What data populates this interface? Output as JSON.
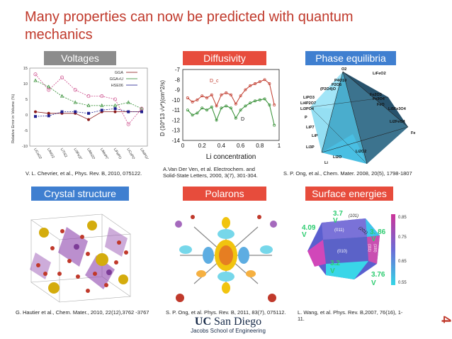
{
  "slide": {
    "title": "Many properties can now be predicted with quantum mechanics",
    "page_number": "4"
  },
  "labels": {
    "voltages": "Voltages",
    "diffusivity": "Diffusivity",
    "phase_equilibria": "Phase equilibria",
    "crystal_structure": "Crystal structure",
    "polarons": "Polarons",
    "surface_energies": "Surface energies"
  },
  "citations": {
    "voltages": "V. L. Chevrier, et al., Phys. Rev. B, 2010, 075122.",
    "diffusivity": "A.Van Der Ven, et al. Electrochem. and Solid-State Letters, 2000, 3(7), 301-304.",
    "phase_equilibria": "S. P. Ong, et al., Chem. Mater. 2008, 20(5), 1798-1807",
    "crystal_structure": "G. Hautier et al., Chem. Mater., 2010, 22(12),3762 -3767",
    "polarons": "S. P. Ong, et al. Phys. Rev. B, 2011, 83(7), 075112.",
    "surface_energies": "L. Wang, et al. Phys. Rev. B,2007, 76(16), 1-11."
  },
  "logo": {
    "uc": "UC",
    "san_diego": "San Diego",
    "school": "Jacobs School of Engineering"
  },
  "chart_data": [
    {
      "type": "line",
      "ylabel": "Relative Error in Volume (%)",
      "ylim": [
        -10,
        15
      ],
      "yticks": [
        "15",
        "10",
        "5",
        "0",
        "-5",
        "-10"
      ],
      "categories": [
        "LiCoO2",
        "LiNiO2",
        "LiTiS2",
        "Li3Fe2(PO4)3",
        "LiMn2O4",
        "LiMnPO4",
        "LiFePO4",
        "LiCoPO4",
        "LiNiPO4"
      ],
      "series": [
        {
          "name": "GGA",
          "color": "#8b1a1a",
          "values": [
            1,
            0.5,
            0.5,
            0.5,
            -1.5,
            1,
            1,
            1,
            1
          ]
        },
        {
          "name": "GGA+U",
          "color": "#2e8b2e",
          "values": [
            11,
            9,
            6,
            4,
            3,
            3,
            3,
            4,
            2
          ]
        },
        {
          "name": "HSE06",
          "color": "#1f1f8f",
          "values": [
            -0.5,
            -0.3,
            1,
            1,
            0.5,
            1.5,
            2,
            1,
            1
          ]
        },
        {
          "name": "",
          "color": "#cc4b8a",
          "values": [
            13,
            8,
            12,
            8,
            6,
            6,
            5,
            -3,
            2
          ]
        }
      ]
    },
    {
      "type": "line",
      "xlabel": "Li concentration",
      "ylabel": "D (10^13 √ν*)(cm^2/s)",
      "xlim": [
        0,
        1
      ],
      "ylim": [
        -14,
        -7
      ],
      "xticks": [
        "0",
        "0.2",
        "0.4",
        "0.6",
        "0.8",
        "1"
      ],
      "yticks": [
        "-7",
        "-8",
        "-9",
        "-10",
        "-11",
        "-12",
        "-13",
        "-14"
      ],
      "annotations": [
        "D_c",
        "D"
      ],
      "series": [
        {
          "name": "D_c",
          "color": "#c0392b",
          "x": [
            0.05,
            0.1,
            0.15,
            0.2,
            0.25,
            0.3,
            0.35,
            0.4,
            0.45,
            0.5,
            0.55,
            0.6,
            0.65,
            0.7,
            0.75,
            0.8,
            0.85,
            0.9,
            0.95
          ],
          "values": [
            -9.8,
            -10.2,
            -10.0,
            -9.6,
            -9.8,
            -9.5,
            -10.6,
            -9.5,
            -9.3,
            -9.5,
            -10.4,
            -9.6,
            -9.0,
            -8.6,
            -8.4,
            -8.2,
            -8.0,
            -8.4,
            -10.5
          ]
        },
        {
          "name": "D",
          "color": "#2e8b2e",
          "x": [
            0.05,
            0.1,
            0.15,
            0.2,
            0.25,
            0.3,
            0.35,
            0.4,
            0.45,
            0.5,
            0.55,
            0.6,
            0.65,
            0.7,
            0.75,
            0.8,
            0.85,
            0.9,
            0.95
          ],
          "values": [
            -11.0,
            -11.5,
            -11.3,
            -10.8,
            -11.0,
            -10.7,
            -12.0,
            -10.8,
            -10.6,
            -10.8,
            -11.8,
            -11.0,
            -10.6,
            -10.3,
            -10.1,
            -10.0,
            -9.9,
            -10.5,
            -12.5
          ]
        }
      ]
    }
  ],
  "phase_equilibria": {
    "labels": [
      "O2",
      "LiFeO2",
      "P4O10",
      "P2O5",
      "(P2O4)O",
      "LiPO3",
      "Li4P2O7",
      "Li3PO4",
      "Fe2O3",
      "Fe3O4",
      "FeO",
      "Li5Fe3O4",
      "Li2FeO4",
      "Fe",
      "P",
      "LiP7",
      "LiP",
      "Li3P",
      "Li2O",
      "Li2O2",
      "Li"
    ]
  },
  "surface": {
    "top_value": "3.7",
    "top_unit": "V",
    "top_facet": "(101)",
    "left_value": "4.09",
    "left_unit": "V",
    "right_value": "3. 86",
    "right_unit": "V",
    "right_facet": "(201)",
    "bottom_left_value": "3.2",
    "bottom_left_unit": "V",
    "bottom_right_value": "3.76",
    "bottom_right_unit": "V",
    "facet_011": "(011)",
    "facet_010": "(010)",
    "facet_111": "(111)",
    "facet_100": "(100)",
    "colorbar_ticks": [
      "0.85",
      "0.75",
      "0.65",
      "0.55"
    ]
  }
}
